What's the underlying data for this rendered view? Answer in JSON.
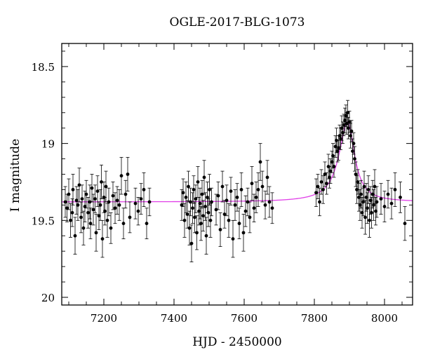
{
  "chart_data": {
    "type": "scatter",
    "title": "OGLE-2017-BLG-1073",
    "xlabel": "HJD - 2450000",
    "ylabel": "I magnitude",
    "xlim": [
      7080,
      8080
    ],
    "ylim": [
      20.05,
      18.35
    ],
    "y_inverted": true,
    "xticks": [
      7200,
      7400,
      7600,
      7800,
      8000
    ],
    "yticks": [
      18.5,
      19,
      19.5,
      20
    ],
    "yticklabels": [
      "18.5",
      "19",
      "19.5",
      "20"
    ],
    "grid": false,
    "series": [
      {
        "type": "errorbar-scatter",
        "color": "#000000",
        "points": [
          [
            7090,
            19.38,
            0.1
          ],
          [
            7095,
            19.42,
            0.09
          ],
          [
            7100,
            19.33,
            0.1
          ],
          [
            7105,
            19.5,
            0.11
          ],
          [
            7110,
            19.45,
            0.09
          ],
          [
            7112,
            19.3,
            0.1
          ],
          [
            7118,
            19.6,
            0.12
          ],
          [
            7122,
            19.37,
            0.09
          ],
          [
            7126,
            19.4,
            0.1
          ],
          [
            7130,
            19.27,
            0.11
          ],
          [
            7135,
            19.48,
            0.1
          ],
          [
            7138,
            19.36,
            0.09
          ],
          [
            7142,
            19.55,
            0.11
          ],
          [
            7146,
            19.41,
            0.1
          ],
          [
            7150,
            19.33,
            0.09
          ],
          [
            7155,
            19.45,
            0.1
          ],
          [
            7160,
            19.38,
            0.11
          ],
          [
            7162,
            19.52,
            0.1
          ],
          [
            7166,
            19.29,
            0.09
          ],
          [
            7170,
            19.43,
            0.1
          ],
          [
            7175,
            19.36,
            0.09
          ],
          [
            7178,
            19.58,
            0.12
          ],
          [
            7182,
            19.31,
            0.1
          ],
          [
            7186,
            19.47,
            0.09
          ],
          [
            7190,
            19.4,
            0.1
          ],
          [
            7193,
            19.25,
            0.11
          ],
          [
            7196,
            19.62,
            0.12
          ],
          [
            7200,
            19.35,
            0.1
          ],
          [
            7203,
            19.44,
            0.09
          ],
          [
            7206,
            19.28,
            0.1
          ],
          [
            7210,
            19.5,
            0.11
          ],
          [
            7214,
            19.38,
            0.09
          ],
          [
            7220,
            19.55,
            0.1
          ],
          [
            7226,
            19.34,
            0.09
          ],
          [
            7232,
            19.42,
            0.1
          ],
          [
            7238,
            19.37,
            0.09
          ],
          [
            7244,
            19.4,
            0.1
          ],
          [
            7250,
            19.21,
            0.12
          ],
          [
            7256,
            19.52,
            0.1
          ],
          [
            7262,
            19.33,
            0.09
          ],
          [
            7268,
            19.2,
            0.11
          ],
          [
            7274,
            19.48,
            0.1
          ],
          [
            7290,
            19.39,
            0.1
          ],
          [
            7298,
            19.44,
            0.09
          ],
          [
            7306,
            19.36,
            0.1
          ],
          [
            7314,
            19.3,
            0.11
          ],
          [
            7322,
            19.52,
            0.1
          ],
          [
            7330,
            19.38,
            0.09
          ],
          [
            7422,
            19.4,
            0.1
          ],
          [
            7426,
            19.32,
            0.09
          ],
          [
            7430,
            19.5,
            0.11
          ],
          [
            7434,
            19.35,
            0.1
          ],
          [
            7438,
            19.46,
            0.09
          ],
          [
            7441,
            19.28,
            0.1
          ],
          [
            7444,
            19.55,
            0.11
          ],
          [
            7447,
            19.38,
            0.09
          ],
          [
            7450,
            19.65,
            0.12
          ],
          [
            7453,
            19.42,
            0.1
          ],
          [
            7456,
            19.3,
            0.09
          ],
          [
            7459,
            19.48,
            0.1
          ],
          [
            7462,
            19.36,
            0.09
          ],
          [
            7465,
            19.58,
            0.11
          ],
          [
            7468,
            19.25,
            0.1
          ],
          [
            7471,
            19.44,
            0.09
          ],
          [
            7474,
            19.39,
            0.1
          ],
          [
            7477,
            19.52,
            0.11
          ],
          [
            7480,
            19.33,
            0.09
          ],
          [
            7483,
            19.47,
            0.1
          ],
          [
            7486,
            19.22,
            0.11
          ],
          [
            7489,
            19.41,
            0.09
          ],
          [
            7492,
            19.6,
            0.12
          ],
          [
            7495,
            19.35,
            0.1
          ],
          [
            7498,
            19.45,
            0.09
          ],
          [
            7501,
            19.3,
            0.1
          ],
          [
            7504,
            19.5,
            0.11
          ],
          [
            7507,
            19.38,
            0.09
          ],
          [
            7520,
            19.43,
            0.1
          ],
          [
            7526,
            19.34,
            0.09
          ],
          [
            7532,
            19.56,
            0.11
          ],
          [
            7538,
            19.28,
            0.1
          ],
          [
            7544,
            19.46,
            0.09
          ],
          [
            7550,
            19.37,
            0.1
          ],
          [
            7556,
            19.5,
            0.11
          ],
          [
            7562,
            19.31,
            0.09
          ],
          [
            7568,
            19.62,
            0.12
          ],
          [
            7574,
            19.4,
            0.1
          ],
          [
            7580,
            19.35,
            0.09
          ],
          [
            7586,
            19.52,
            0.1
          ],
          [
            7592,
            19.3,
            0.11
          ],
          [
            7598,
            19.58,
            0.12
          ],
          [
            7604,
            19.44,
            0.1
          ],
          [
            7610,
            19.38,
            0.09
          ],
          [
            7616,
            19.48,
            0.1
          ],
          [
            7622,
            19.26,
            0.11
          ],
          [
            7628,
            19.42,
            0.09
          ],
          [
            7634,
            19.35,
            0.1
          ],
          [
            7640,
            19.3,
            0.11
          ],
          [
            7646,
            19.12,
            0.12
          ],
          [
            7652,
            19.28,
            0.1
          ],
          [
            7660,
            19.4,
            0.09
          ],
          [
            7666,
            19.22,
            0.11
          ],
          [
            7672,
            19.38,
            0.1
          ],
          [
            7680,
            19.42,
            0.1
          ],
          [
            7805,
            19.32,
            0.09
          ],
          [
            7810,
            19.28,
            0.08
          ],
          [
            7815,
            19.38,
            0.09
          ],
          [
            7820,
            19.25,
            0.08
          ],
          [
            7825,
            19.3,
            0.09
          ],
          [
            7830,
            19.2,
            0.08
          ],
          [
            7835,
            19.26,
            0.07
          ],
          [
            7840,
            19.15,
            0.08
          ],
          [
            7843,
            19.22,
            0.07
          ],
          [
            7846,
            19.18,
            0.08
          ],
          [
            7850,
            19.12,
            0.07
          ],
          [
            7853,
            19.08,
            0.08
          ],
          [
            7856,
            19.15,
            0.07
          ],
          [
            7860,
            19.02,
            0.07
          ],
          [
            7863,
            18.98,
            0.08
          ],
          [
            7866,
            19.05,
            0.07
          ],
          [
            7869,
            19.03,
            0.08
          ],
          [
            7872,
            18.95,
            0.07
          ],
          [
            7875,
            18.97,
            0.07
          ],
          [
            7878,
            18.9,
            0.08
          ],
          [
            7881,
            18.93,
            0.07
          ],
          [
            7884,
            18.88,
            0.07
          ],
          [
            7887,
            18.85,
            0.08
          ],
          [
            7890,
            18.82,
            0.07
          ],
          [
            7892,
            18.87,
            0.07
          ],
          [
            7895,
            18.8,
            0.08
          ],
          [
            7897,
            18.9,
            0.07
          ],
          [
            7900,
            18.86,
            0.07
          ],
          [
            7903,
            18.95,
            0.08
          ],
          [
            7906,
            18.92,
            0.07
          ],
          [
            7909,
            19.05,
            0.08
          ],
          [
            7912,
            19.0,
            0.07
          ],
          [
            7915,
            19.1,
            0.08
          ],
          [
            7918,
            19.2,
            0.08
          ],
          [
            7921,
            19.3,
            0.09
          ],
          [
            7924,
            19.25,
            0.08
          ],
          [
            7927,
            19.35,
            0.09
          ],
          [
            7930,
            19.4,
            0.1
          ],
          [
            7933,
            19.33,
            0.09
          ],
          [
            7936,
            19.45,
            0.1
          ],
          [
            7939,
            19.38,
            0.09
          ],
          [
            7942,
            19.28,
            0.1
          ],
          [
            7945,
            19.48,
            0.11
          ],
          [
            7948,
            19.35,
            0.09
          ],
          [
            7951,
            19.42,
            0.1
          ],
          [
            7954,
            19.3,
            0.09
          ],
          [
            7957,
            19.5,
            0.11
          ],
          [
            7960,
            19.37,
            0.09
          ],
          [
            7963,
            19.45,
            0.1
          ],
          [
            7966,
            19.33,
            0.09
          ],
          [
            7969,
            19.4,
            0.1
          ],
          [
            7972,
            19.28,
            0.11
          ],
          [
            7975,
            19.44,
            0.09
          ],
          [
            7978,
            19.38,
            0.1
          ],
          [
            7990,
            19.36,
            0.1
          ],
          [
            8000,
            19.41,
            0.1
          ],
          [
            8010,
            19.33,
            0.09
          ],
          [
            8020,
            19.39,
            0.1
          ],
          [
            8030,
            19.3,
            0.11
          ],
          [
            8045,
            19.35,
            0.1
          ],
          [
            8058,
            19.52,
            0.11
          ]
        ]
      },
      {
        "type": "line",
        "color": "#e040e8",
        "model": {
          "baseline": 19.38,
          "t0": 7895,
          "amplitude": 0.52,
          "tE": 38,
          "tE_decline": 30
        }
      }
    ]
  }
}
